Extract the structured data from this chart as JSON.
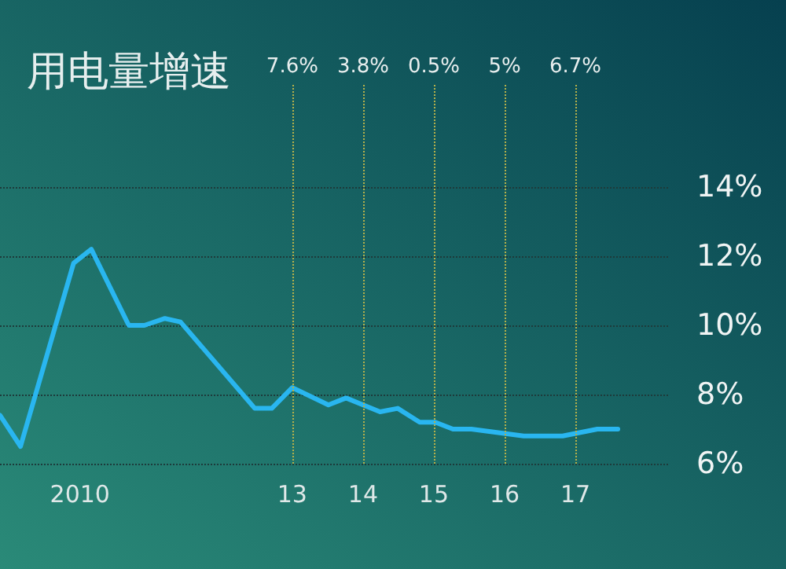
{
  "chart_data": {
    "type": "line",
    "title": "用电量增速",
    "x": [
      2008.87,
      2009.16,
      2009.91,
      2010.16,
      2010.69,
      2010.91,
      2011.2,
      2011.42,
      2012.47,
      2012.71,
      2013.0,
      2013.51,
      2013.76,
      2014.24,
      2014.49,
      2014.8,
      2015.02,
      2015.27,
      2015.53,
      2016.27,
      2016.82,
      2017.31,
      2017.6
    ],
    "series": [
      {
        "color": "#29b6f0",
        "values": [
          7.4,
          6.5,
          11.8,
          12.2,
          10.0,
          10.0,
          10.2,
          10.1,
          7.6,
          7.6,
          8.2,
          7.7,
          7.9,
          7.5,
          7.6,
          7.2,
          7.2,
          7.0,
          7.0,
          6.8,
          6.8,
          7.0,
          7.0
        ]
      }
    ],
    "xlim": [
      2008.87,
      2018.31
    ],
    "xticks": [
      {
        "value": 2010,
        "label": "2010"
      },
      {
        "value": 2013,
        "label": "13"
      },
      {
        "value": 2014,
        "label": "14"
      },
      {
        "value": 2015,
        "label": "15"
      },
      {
        "value": 2016,
        "label": "16"
      },
      {
        "value": 2017,
        "label": "17"
      }
    ],
    "ylim": [
      6,
      17
    ],
    "yticks": [
      {
        "value": 6,
        "label": "6%"
      },
      {
        "value": 8,
        "label": "8%"
      },
      {
        "value": 10,
        "label": "10%"
      },
      {
        "value": 12,
        "label": "12%"
      },
      {
        "value": 14,
        "label": "14%"
      }
    ],
    "grid": "y",
    "marker": "none",
    "line_style": "solid",
    "ref_lines": [
      {
        "axis": "x",
        "value": 2013,
        "color": "#b5b04a",
        "line_style": "dotted"
      },
      {
        "axis": "x",
        "value": 2014,
        "color": "#b5b04a",
        "line_style": "dotted"
      },
      {
        "axis": "x",
        "value": 2015,
        "color": "#b5b04a",
        "line_style": "dotted"
      },
      {
        "axis": "x",
        "value": 2016,
        "color": "#b5b04a",
        "line_style": "dotted"
      },
      {
        "axis": "x",
        "value": 2017,
        "color": "#b5b04a",
        "line_style": "dotted"
      }
    ],
    "annotations": [
      "7.6%",
      "3.8%",
      "0.5%",
      "5%",
      "6.7%"
    ]
  }
}
